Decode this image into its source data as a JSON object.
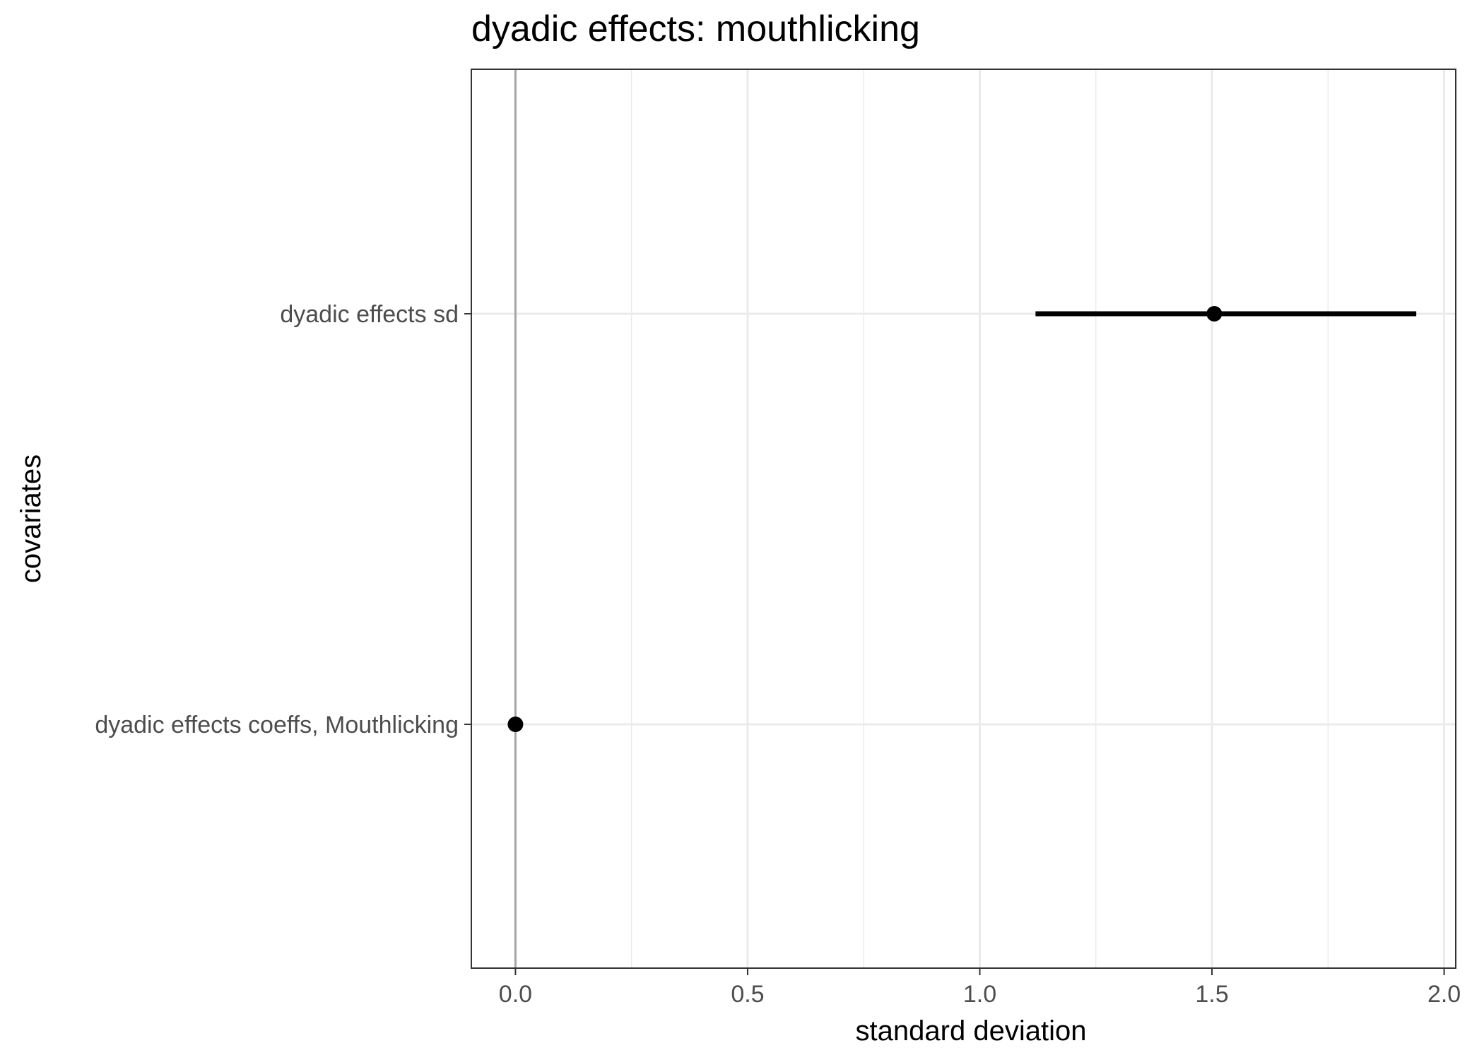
{
  "chart_data": {
    "type": "scatter",
    "title": "dyadic effects: mouthlicking",
    "xlabel": "standard deviation",
    "ylabel": "covariates",
    "xlim": [
      -0.095,
      2.025
    ],
    "x_ticks": [
      "0.0",
      "0.5",
      "1.0",
      "1.5",
      "2.0"
    ],
    "x_tick_values": [
      0.0,
      0.5,
      1.0,
      1.5,
      2.0
    ],
    "x_minor_ticks": [
      0.25,
      0.75,
      1.25,
      1.75
    ],
    "reference_line_x": 0,
    "categories": [
      "dyadic effects sd",
      "dyadic effects coeffs, Mouthlicking"
    ],
    "points": [
      {
        "label": "dyadic effects sd",
        "estimate": 1.505,
        "lower": 1.12,
        "upper": 1.94
      },
      {
        "label": "dyadic effects coeffs, Mouthlicking",
        "estimate": 0.0,
        "lower": 0.0,
        "upper": 0.0
      }
    ],
    "grid": true,
    "legend": "none",
    "colors": {
      "point": "#000000",
      "grid": "#ebebeb",
      "reference": "#a6a6a6",
      "frame": "#333333"
    }
  }
}
